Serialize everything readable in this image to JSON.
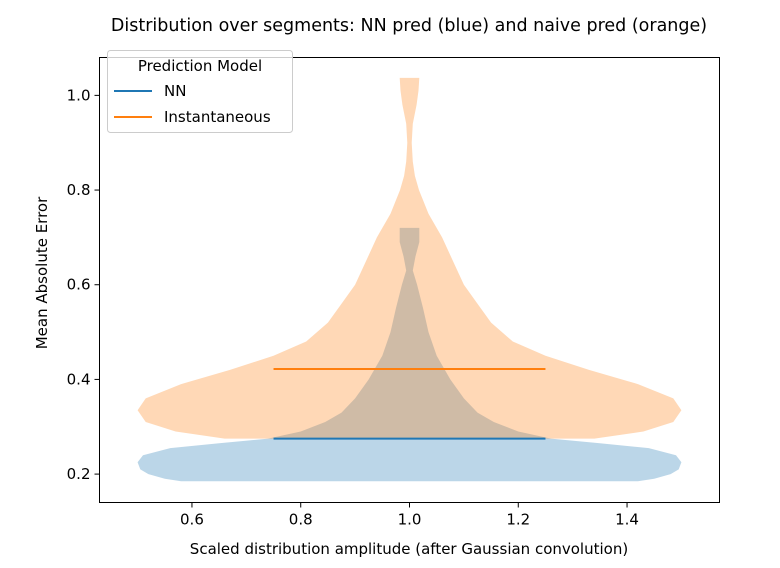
{
  "chart_data": {
    "type": "violin",
    "title": "Distribution over segments: NN pred (blue) and naive pred (orange)",
    "xlabel": "Scaled distribution amplitude (after Gaussian convolution)",
    "ylabel": "Mean Absolute Error",
    "xlim": [
      0.43,
      1.57
    ],
    "ylim": [
      0.14,
      1.08
    ],
    "xticks": [
      "0.6",
      "0.8",
      "1.0",
      "1.2",
      "1.4"
    ],
    "yticks": [
      "0.2",
      "0.4",
      "0.6",
      "0.8",
      "1.0"
    ],
    "grid": false,
    "legend": {
      "title": "Prediction Model",
      "placement": "upper-left",
      "entries": [
        "NN",
        "Instantaneous"
      ]
    },
    "series": [
      {
        "name": "NN",
        "color": "#1f77b4",
        "fill_alpha": 0.3,
        "position": 1.0,
        "width": 1.0,
        "mean": 0.275,
        "range": [
          0.185,
          0.72
        ],
        "profile": [
          [
            0.185,
            0.84
          ],
          [
            0.19,
            0.9
          ],
          [
            0.2,
            0.96
          ],
          [
            0.21,
            0.99
          ],
          [
            0.225,
            1.0
          ],
          [
            0.24,
            0.98
          ],
          [
            0.255,
            0.88
          ],
          [
            0.265,
            0.7
          ],
          [
            0.275,
            0.52
          ],
          [
            0.29,
            0.4
          ],
          [
            0.31,
            0.31
          ],
          [
            0.33,
            0.25
          ],
          [
            0.36,
            0.2
          ],
          [
            0.4,
            0.15
          ],
          [
            0.45,
            0.1
          ],
          [
            0.5,
            0.07
          ],
          [
            0.55,
            0.05
          ],
          [
            0.6,
            0.028
          ],
          [
            0.63,
            0.012
          ],
          [
            0.66,
            0.022
          ],
          [
            0.69,
            0.036
          ],
          [
            0.72,
            0.036
          ]
        ]
      },
      {
        "name": "Instantaneous",
        "color": "#ff7f0e",
        "fill_alpha": 0.3,
        "position": 1.0,
        "width": 1.0,
        "mean": 0.422,
        "range": [
          0.275,
          1.037
        ],
        "profile": [
          [
            0.275,
            0.68
          ],
          [
            0.29,
            0.86
          ],
          [
            0.31,
            0.97
          ],
          [
            0.335,
            1.0
          ],
          [
            0.36,
            0.97
          ],
          [
            0.39,
            0.84
          ],
          [
            0.42,
            0.66
          ],
          [
            0.45,
            0.5
          ],
          [
            0.48,
            0.38
          ],
          [
            0.52,
            0.3
          ],
          [
            0.56,
            0.25
          ],
          [
            0.6,
            0.2
          ],
          [
            0.65,
            0.16
          ],
          [
            0.7,
            0.12
          ],
          [
            0.75,
            0.07
          ],
          [
            0.8,
            0.035
          ],
          [
            0.83,
            0.02
          ],
          [
            0.86,
            0.012
          ],
          [
            0.9,
            0.008
          ],
          [
            0.94,
            0.012
          ],
          [
            0.98,
            0.026
          ],
          [
            1.01,
            0.033
          ],
          [
            1.037,
            0.036
          ]
        ]
      }
    ]
  }
}
